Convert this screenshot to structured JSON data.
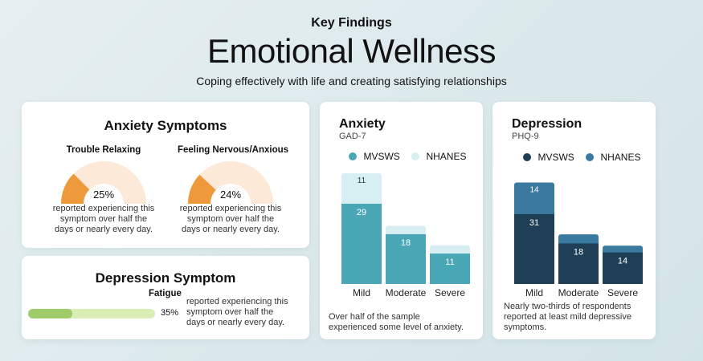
{
  "header": {
    "kicker": "Key Findings",
    "title": "Emotional Wellness",
    "subtitle": "Coping effectively with life and creating satisfying relationships"
  },
  "anxiety_symptoms": {
    "title": "Anxiety Symptoms",
    "items": [
      {
        "label": "Trouble Relaxing",
        "percent": 25,
        "percent_text": "25%",
        "desc1": "reported experiencing this",
        "desc2": "symptom over half the",
        "desc3": "days or nearly every day."
      },
      {
        "label": "Feeling Nervous/Anxious",
        "percent": 24,
        "percent_text": "24%",
        "desc1": "reported experiencing this",
        "desc2": "symptom over half the",
        "desc3": "days or nearly every day."
      }
    ]
  },
  "depression_symptom": {
    "title": "Depression Symptom",
    "label": "Fatigue",
    "percent": 35,
    "percent_text": "35%",
    "desc1": "reported experiencing this",
    "desc2": "symptom over half the",
    "desc3": "days or nearly every day."
  },
  "colors": {
    "gauge_fill": "#ee9a3c",
    "gauge_track": "#fde9d8",
    "bar_fill": "#9fcb6b",
    "bar_track": "#d9edb4",
    "anxiety_mvsws": "#4aa7b6",
    "anxiety_nhanes": "#d7eef2",
    "depression_mvsws": "#1e3f55",
    "depression_nhanes": "#3a7aa0"
  },
  "chart_data": [
    {
      "type": "bar",
      "title": "Anxiety",
      "subtitle": "GAD-7",
      "categories": [
        "Mild",
        "Moderate",
        "Severe"
      ],
      "series": [
        {
          "name": "MVSWS",
          "values": [
            29,
            18,
            11
          ]
        },
        {
          "name": "NHANES",
          "values": [
            11,
            3,
            3
          ]
        }
      ],
      "stacked": true,
      "legend": "top",
      "ylim": [
        0,
        40
      ],
      "note1": "Over half of the sample",
      "note2": "experienced some level of anxiety."
    },
    {
      "type": "bar",
      "title": "Depression",
      "subtitle": "PHQ-9",
      "categories": [
        "Mild",
        "Moderate",
        "Severe"
      ],
      "series": [
        {
          "name": "MVSWS",
          "values": [
            31,
            18,
            14
          ]
        },
        {
          "name": "NHANES",
          "values": [
            14,
            4,
            3
          ]
        }
      ],
      "stacked": true,
      "legend": "top",
      "ylim": [
        0,
        45
      ],
      "note1": "Nearly two-thirds of respondents",
      "note2": "reported at least mild depressive",
      "note3": "symptoms."
    }
  ]
}
